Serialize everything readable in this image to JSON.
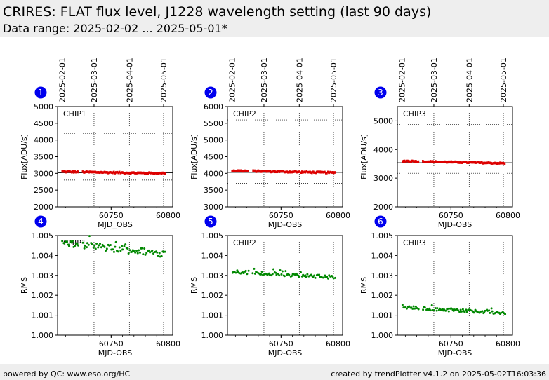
{
  "header": {
    "title": "CRIRES: FLAT flux level, J1228 wavelength setting (last 90 days)",
    "subtitle": "Data range: 2025-02-02 ... 2025-05-01*"
  },
  "footer": {
    "left": "powered by QC: www.eso.org/HC",
    "right": "created by trendPlotter v4.1.2 on 2025-05-02T16:03:36"
  },
  "colors": {
    "flux": "#dd0000",
    "rms": "#008800",
    "badge": "#0000ee"
  },
  "date_ticks": [
    {
      "label": "2025-02-01",
      "mjd": 60707
    },
    {
      "label": "2025-03-01",
      "mjd": 60735
    },
    {
      "label": "2025-04-01",
      "mjd": 60766
    },
    {
      "label": "2025-05-01",
      "mjd": 60796
    }
  ],
  "chart_data": [
    {
      "type": "scatter",
      "badge": "1",
      "chip_label": "CHIP1",
      "ylabel": "Flux[ADU/s]",
      "xlabel": "MJD_OBS",
      "xlim": [
        60703,
        60804
      ],
      "ylim": [
        2000,
        5000
      ],
      "yticks": [
        2000,
        2500,
        3000,
        3500,
        4000,
        4500,
        5000
      ],
      "xticks": [
        60750,
        60800
      ],
      "ref_lines": {
        "solid": 3020,
        "dotted": [
          4200,
          2800
        ]
      },
      "series_color": "flux",
      "start": 3050,
      "end": 3000,
      "noise": 18
    },
    {
      "type": "scatter",
      "badge": "2",
      "chip_label": "CHIP2",
      "ylabel": "Flux[ADU/s]",
      "xlabel": "MJD-OBS",
      "xlim": [
        60703,
        60804
      ],
      "ylim": [
        3000,
        6000
      ],
      "yticks": [
        3000,
        3500,
        4000,
        4500,
        5000,
        5500,
        6000
      ],
      "xticks": [
        60750,
        60800
      ],
      "ref_lines": {
        "solid": 4030,
        "dotted": [
          5600,
          3700
        ]
      },
      "series_color": "flux",
      "start": 4080,
      "end": 4020,
      "noise": 18
    },
    {
      "type": "scatter",
      "badge": "3",
      "chip_label": "CHIP3",
      "ylabel": "Flux[ADU/s]",
      "xlabel": "MJD-OBS",
      "xlim": [
        60703,
        60804
      ],
      "ylim": [
        2000,
        5500
      ],
      "yticks": [
        2000,
        3000,
        4000,
        5000
      ],
      "xticks": [
        60750,
        60800
      ],
      "ref_lines": {
        "solid": 3540,
        "dotted": [
          4870,
          3170
        ]
      },
      "series_color": "flux",
      "start": 3600,
      "end": 3520,
      "noise": 18
    },
    {
      "type": "scatter",
      "badge": "4",
      "chip_label": "CHIP1",
      "ylabel": "RMS",
      "xlabel": "MJD-OBS",
      "xlim": [
        60703,
        60804
      ],
      "ylim": [
        1.0,
        1.005
      ],
      "yticks": [
        1.0,
        1.001,
        1.002,
        1.003,
        1.004,
        1.005
      ],
      "xticks": [
        60750,
        60800
      ],
      "ref_lines": {
        "solid": null,
        "dotted": []
      },
      "series_color": "rms",
      "start": 1.0046,
      "end": 1.0041,
      "noise": 0.00018
    },
    {
      "type": "scatter",
      "badge": "5",
      "chip_label": "CHIP2",
      "ylabel": "RMS",
      "xlabel": "MJD-OBS",
      "xlim": [
        60703,
        60804
      ],
      "ylim": [
        1.0,
        1.005
      ],
      "yticks": [
        1.0,
        1.001,
        1.002,
        1.003,
        1.004,
        1.005
      ],
      "xticks": [
        60750,
        60800
      ],
      "ref_lines": {
        "solid": null,
        "dotted": []
      },
      "series_color": "rms",
      "start": 1.0032,
      "end": 1.0029,
      "noise": 9e-05
    },
    {
      "type": "scatter",
      "badge": "6",
      "chip_label": "CHIP3",
      "ylabel": "RMS",
      "xlabel": "MJD-OBS",
      "xlim": [
        60703,
        60804
      ],
      "ylim": [
        1.0,
        1.005
      ],
      "yticks": [
        1.0,
        1.001,
        1.002,
        1.003,
        1.004,
        1.005
      ],
      "xticks": [
        60750,
        60800
      ],
      "ref_lines": {
        "solid": null,
        "dotted": []
      },
      "series_color": "rms",
      "start": 1.0014,
      "end": 1.00112,
      "noise": 8e-05
    }
  ]
}
